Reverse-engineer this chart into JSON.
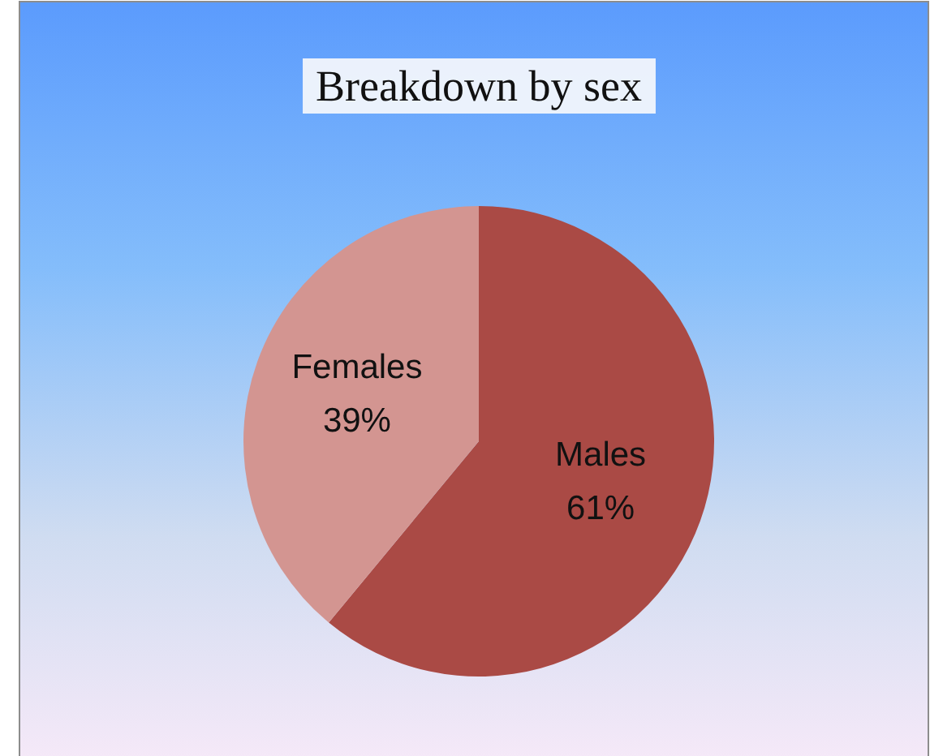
{
  "chart_data": {
    "type": "pie",
    "title": "Breakdown by sex",
    "categories": [
      "Males",
      "Females"
    ],
    "values": [
      61,
      39
    ],
    "colors": [
      "#aa4a45",
      "#d39591"
    ],
    "value_labels": [
      "61%",
      "39%"
    ]
  }
}
